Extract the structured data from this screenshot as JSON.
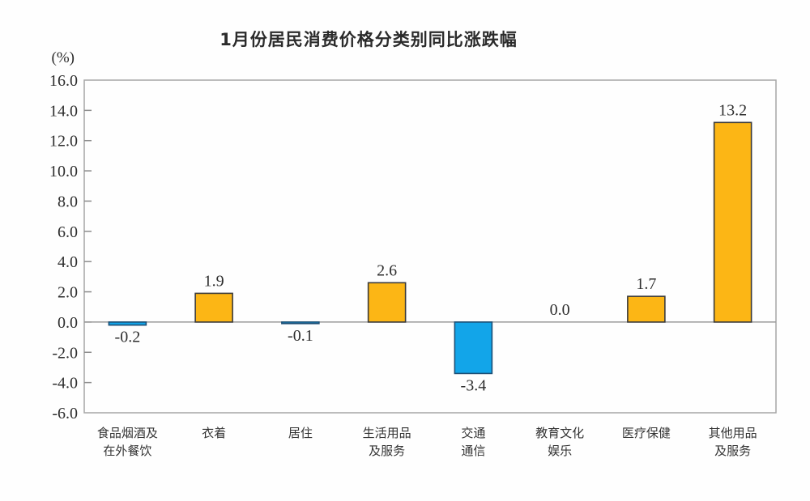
{
  "chart_data": {
    "type": "bar",
    "title": "1月份居民消费价格分类别同比涨跌幅",
    "unit_label": "(%)",
    "categories": [
      "食品烟酒及\n在外餐饮",
      "衣着",
      "居住",
      "生活用品\n及服务",
      "交通\n通信",
      "教育文化\n娱乐",
      "医疗保健",
      "其他用品\n及服务"
    ],
    "values": [
      -0.2,
      1.9,
      -0.1,
      2.6,
      -3.4,
      0.0,
      1.7,
      13.2
    ],
    "value_labels": [
      "-0.2",
      "1.9",
      "-0.1",
      "2.6",
      "-3.4",
      "0.0",
      "1.7",
      "13.2"
    ],
    "xlabel": "",
    "ylabel": "(%)",
    "ylim": [
      -6.0,
      16.0
    ],
    "y_tick_step": 2.0,
    "y_tick_labels": [
      "16.0",
      "14.0",
      "12.0",
      "10.0",
      "8.0",
      "6.0",
      "4.0",
      "2.0",
      "0.0",
      "-2.0",
      "-4.0",
      "-6.0"
    ],
    "grid": false,
    "legend": false,
    "colors": {
      "positive_fill": "#FCB615",
      "positive_stroke": "#3b3b3b",
      "negative_fill": "#12A5E9",
      "negative_stroke": "#1C4F76",
      "axis_border": "#a6a6a6",
      "zero_line": "#9a9a9a",
      "tick_mark": "#8c8c8c",
      "text": "#2e2e2e"
    }
  }
}
